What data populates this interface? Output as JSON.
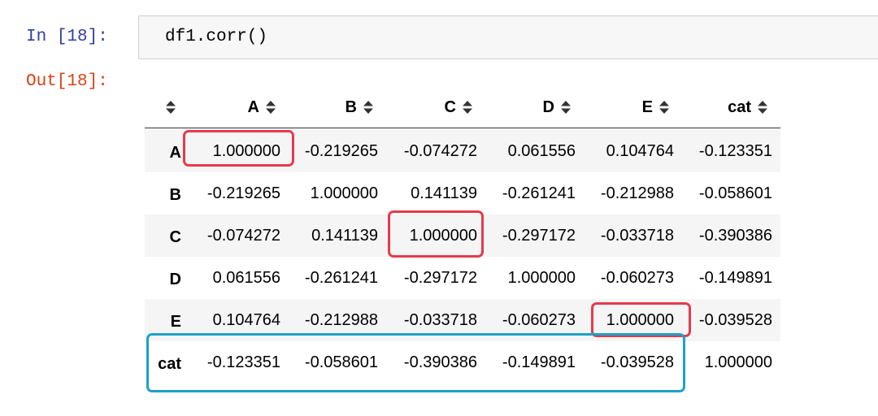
{
  "input": {
    "prompt": "In [18]:",
    "code": "df1.corr()"
  },
  "output": {
    "prompt": "Out[18]:",
    "table": {
      "columns": [
        "A",
        "B",
        "C",
        "D",
        "E",
        "cat"
      ],
      "rows": [
        {
          "label": "A",
          "cells": [
            "1.000000",
            "-0.219265",
            "-0.074272",
            "0.061556",
            "0.104764",
            "-0.123351"
          ]
        },
        {
          "label": "B",
          "cells": [
            "-0.219265",
            "1.000000",
            "0.141139",
            "-0.261241",
            "-0.212988",
            "-0.058601"
          ]
        },
        {
          "label": "C",
          "cells": [
            "-0.074272",
            "0.141139",
            "1.000000",
            "-0.297172",
            "-0.033718",
            "-0.390386"
          ]
        },
        {
          "label": "D",
          "cells": [
            "0.061556",
            "-0.261241",
            "-0.297172",
            "1.000000",
            "-0.060273",
            "-0.149891"
          ]
        },
        {
          "label": "E",
          "cells": [
            "0.104764",
            "-0.212988",
            "-0.033718",
            "-0.060273",
            "1.000000",
            "-0.039528"
          ]
        },
        {
          "label": "cat",
          "cells": [
            "-0.123351",
            "-0.058601",
            "-0.390386",
            "-0.149891",
            "-0.039528",
            "1.000000"
          ]
        }
      ]
    }
  }
}
